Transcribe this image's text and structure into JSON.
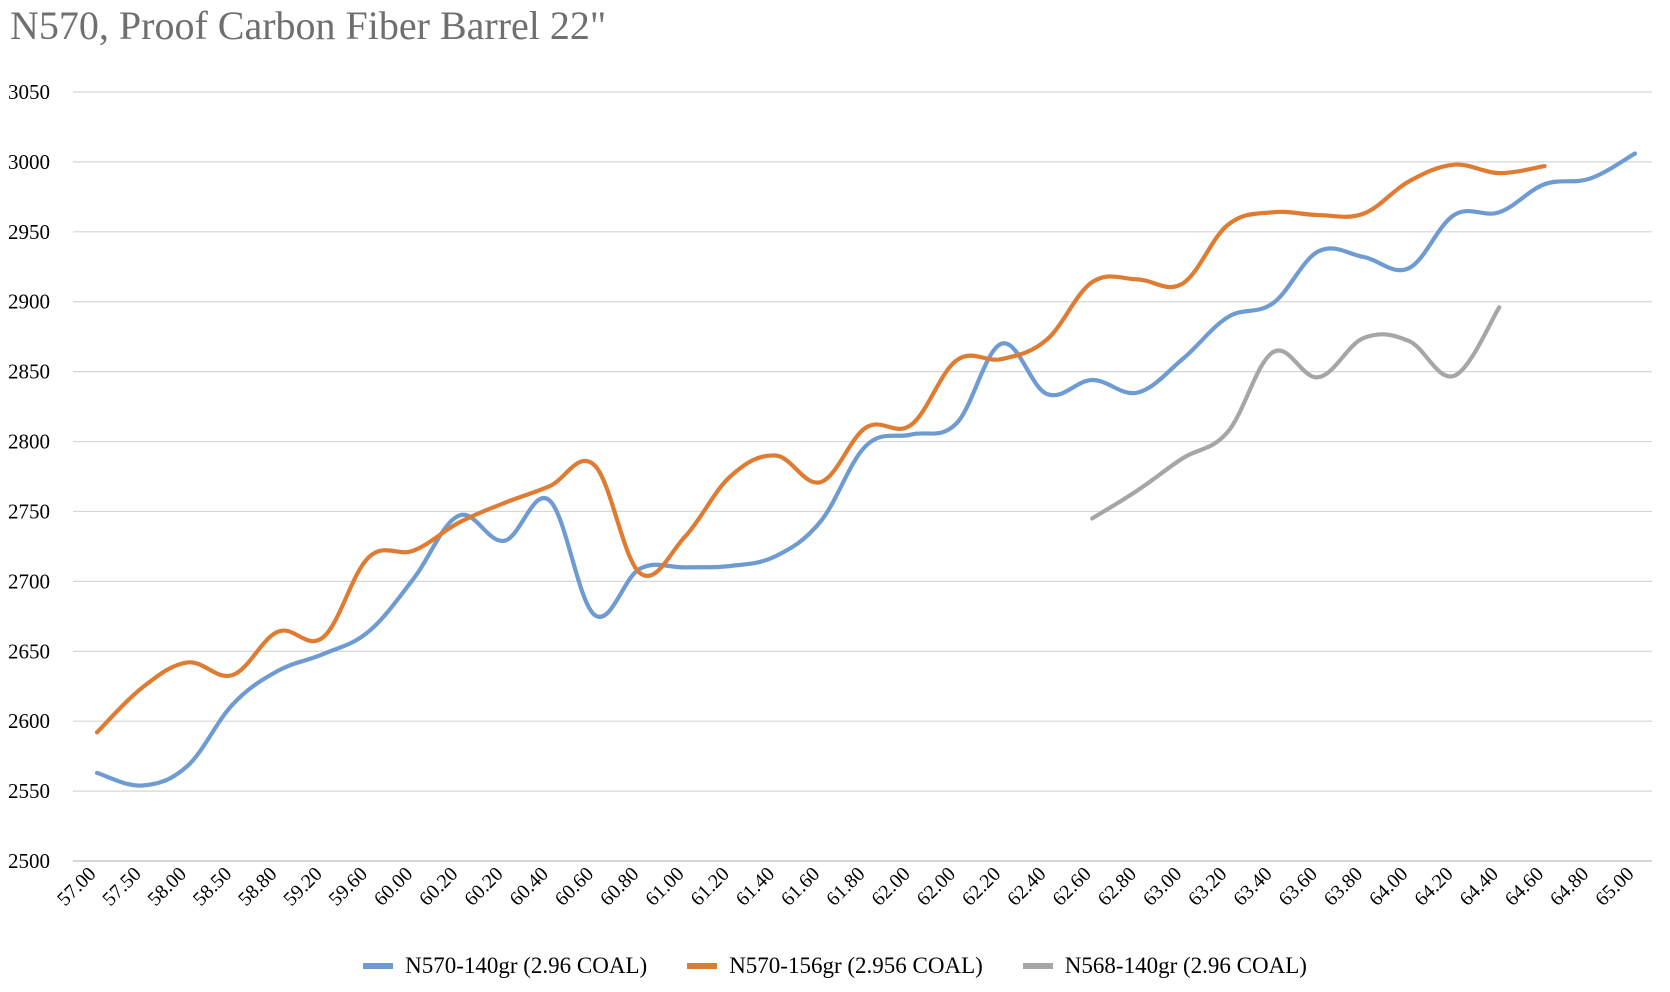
{
  "chart_data": {
    "type": "line",
    "title": "N570, Proof Carbon Fiber Barrel 22\"",
    "xlabel": "",
    "ylabel": "",
    "ylim": [
      2500,
      3050
    ],
    "yticks": [
      2500,
      2550,
      2600,
      2650,
      2700,
      2750,
      2800,
      2850,
      2900,
      2950,
      3000,
      3050
    ],
    "grid": true,
    "legend_position": "bottom",
    "categories": [
      "57.00",
      "57.50",
      "58.00",
      "58.50",
      "58.80",
      "59.20",
      "59.60",
      "60.00",
      "60.20",
      "60.20",
      "60.40",
      "60.60",
      "60.80",
      "61.00",
      "61.20",
      "61.40",
      "61.60",
      "61.80",
      "62.00",
      "62.00",
      "62.20",
      "62.40",
      "62.60",
      "62.80",
      "63.00",
      "63.20",
      "63.40",
      "63.60",
      "63.80",
      "64.00",
      "64.20",
      "64.40",
      "64.60",
      "64.80",
      "65.00"
    ],
    "series": [
      {
        "name": "N570-140gr (2.96 COAL)",
        "color": "#6F9BD3",
        "values": [
          2563,
          2554,
          2568,
          2612,
          2636,
          2648,
          2664,
          2702,
          2747,
          2729,
          2758,
          2676,
          2709,
          2710,
          2711,
          2718,
          2743,
          2797,
          2805,
          2813,
          2870,
          2834,
          2844,
          2835,
          2859,
          2889,
          2899,
          2936,
          2932,
          2924,
          2962,
          2964,
          2984,
          2988,
          3006
        ]
      },
      {
        "name": "N570-156gr (2.956 COAL)",
        "color": "#E07B32",
        "values": [
          2592,
          2624,
          2642,
          2633,
          2664,
          2660,
          2717,
          2722,
          2742,
          2756,
          2768,
          2783,
          2706,
          2732,
          2775,
          2790,
          2771,
          2810,
          2812,
          2858,
          2859,
          2873,
          2914,
          2916,
          2913,
          2955,
          2964,
          2962,
          2963,
          2986,
          2998,
          2992,
          2997,
          null,
          null
        ]
      },
      {
        "name": "N568-140gr (2.96 COAL)",
        "color": "#A6A6A6",
        "values": [
          null,
          null,
          null,
          null,
          null,
          null,
          null,
          null,
          null,
          null,
          null,
          null,
          null,
          null,
          null,
          null,
          null,
          null,
          null,
          null,
          null,
          null,
          2745,
          2765,
          2788,
          2807,
          2864,
          2846,
          2874,
          2872,
          2847,
          2896,
          null,
          null,
          null
        ]
      }
    ]
  }
}
